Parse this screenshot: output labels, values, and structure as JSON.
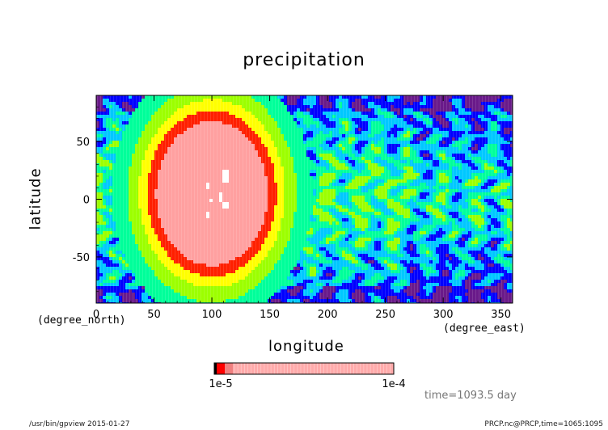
{
  "header": {
    "title": "precipitation"
  },
  "chart_data": {
    "type": "heatmap",
    "title": "precipitation",
    "xlabel": "longitude",
    "ylabel": "latitude",
    "x_unit": "(degree_east)",
    "y_unit": "(degree_north)",
    "xlim": [
      0,
      360
    ],
    "ylim": [
      -90,
      90
    ],
    "x_ticks": [
      "0",
      "50",
      "100",
      "150",
      "200",
      "250",
      "300",
      "350"
    ],
    "y_ticks": [
      "50",
      "0",
      "-50"
    ],
    "colorbar": {
      "labels": [
        "1e-5",
        "1e-4"
      ],
      "colors": [
        "#000000",
        "#ff0000",
        "#f08080",
        "#ffaaaa"
      ],
      "orientation": "horizontal"
    },
    "features": {
      "hotspot_center_lon": 100,
      "hotspot_center_lat": 5,
      "hotspot_radius_lon": 62,
      "hotspot_radius_lat": 80
    },
    "levels_colors": [
      "#6a1a8a",
      "#0000ff",
      "#00c8ff",
      "#00ff9a",
      "#9cff00",
      "#ffff00",
      "#ff2000",
      "#ffa0a0",
      "#ffffff"
    ]
  },
  "annotations": {
    "time": "time=1093.5  day"
  },
  "footer": {
    "left": "/usr/bin/gpview   2015-01-27",
    "right": "PRCP.nc@PRCP,time=1065:1095"
  }
}
